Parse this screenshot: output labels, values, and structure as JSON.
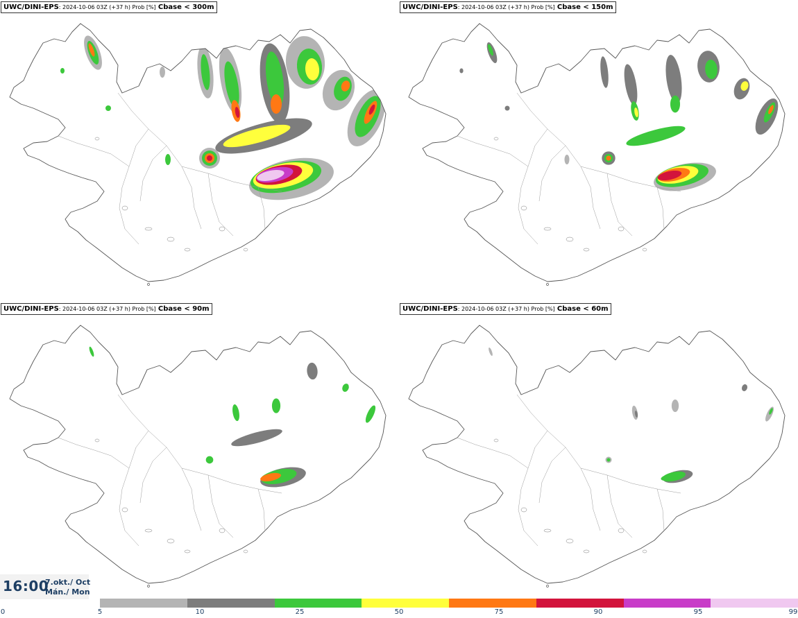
{
  "panels": [
    {
      "model": "UWC/DINI-EPS",
      "meta": ": 2024-10-06 03Z (+37 h) Prob [%]",
      "param": "Cbase < 300m",
      "level": 4
    },
    {
      "model": "UWC/DINI-EPS",
      "meta": ": 2024-10-06 03Z (+37 h) Prob [%]",
      "param": "Cbase < 150m",
      "level": 3
    },
    {
      "model": "UWC/DINI-EPS",
      "meta": ": 2024-10-06 03Z (+37 h) Prob [%]",
      "param": "Cbase < 90m",
      "level": 2
    },
    {
      "model": "UWC/DINI-EPS",
      "meta": ": 2024-10-06 03Z (+37 h) Prob [%]",
      "param": "Cbase < 60m",
      "level": 1
    }
  ],
  "valid_time": {
    "time": "16:00",
    "date_line1": "7.okt./ Oct",
    "date_line2": "Mán./ Mon"
  },
  "legend": {
    "ticks": [
      "0",
      "5",
      "10",
      "25",
      "50",
      "75",
      "90",
      "95",
      "99"
    ],
    "colors": [
      "#b4b4b4",
      "#7d7d7d",
      "#3cc83c",
      "#ffff3c",
      "#ff7814",
      "#d2143c",
      "#c83cc8",
      "#f0c8f0"
    ]
  },
  "map_colors": {
    "coast": "#555555",
    "grey_low": "#b4b4b4",
    "grey_high": "#7d7d7d",
    "green": "#3cc83c",
    "yellow": "#ffff3c",
    "orange": "#ff7814",
    "red": "#d2143c",
    "magenta": "#c83cc8",
    "pink": "#f0c8f0"
  }
}
